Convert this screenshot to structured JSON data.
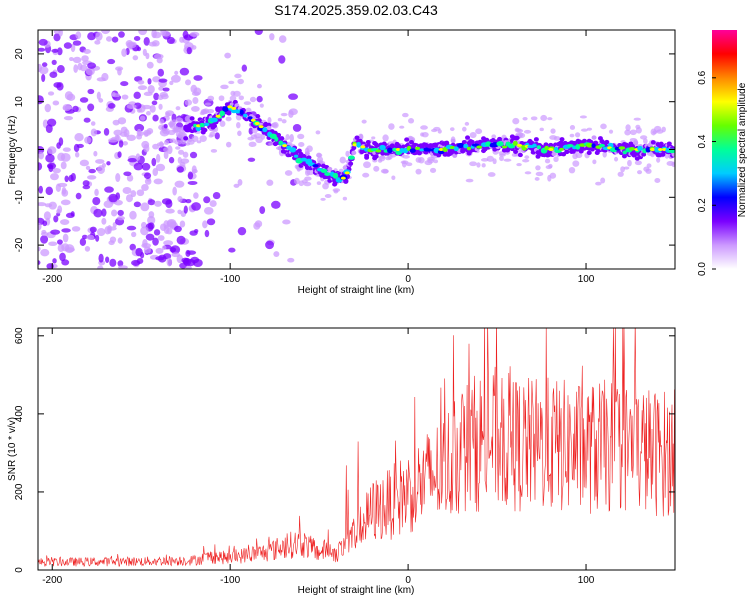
{
  "title": "S174.2025.359.02.03.C43",
  "colors": {
    "snr_line": "#ee2222",
    "colorbar": [
      "#ffffff",
      "#cc99ff",
      "#7a00ff",
      "#0000ff",
      "#00ccff",
      "#00ff99",
      "#66ff00",
      "#ffff00",
      "#ff8800",
      "#ff0000",
      "#ff0099"
    ]
  },
  "chart_data": [
    {
      "type": "heatmap",
      "name": "spectrogram",
      "xlabel": "Height of straight line (km)",
      "ylabel": "Frequency (Hz)",
      "xlim": [
        -208,
        150
      ],
      "ylim": [
        -25,
        25
      ],
      "xticks": [
        -200,
        -100,
        0,
        100
      ],
      "yticks": [
        -20,
        -10,
        0,
        10,
        20
      ],
      "colorbar": {
        "label": "Normalized spectral amplitude",
        "range": [
          0.0,
          0.75
        ],
        "ticks": [
          0.0,
          0.2,
          0.4,
          0.6
        ]
      },
      "ridge": {
        "description_points_x": [
          -125,
          -110,
          -100,
          -90,
          -80,
          -70,
          -60,
          -50,
          -40,
          -35,
          -30,
          -20,
          0,
          20,
          40,
          60,
          80,
          100,
          120,
          150
        ],
        "description_points_y": [
          4,
          6,
          9,
          7,
          4,
          1,
          -2,
          -4,
          -6,
          -6,
          1,
          0,
          0,
          0,
          1,
          1,
          0,
          1,
          0,
          0
        ]
      }
    },
    {
      "type": "line",
      "name": "snr",
      "xlabel": "Height of straight line (km)",
      "ylabel": "SNR (10 * v/v)",
      "xlim": [
        -208,
        150
      ],
      "ylim": [
        0,
        620
      ],
      "xticks": [
        -200,
        -100,
        0,
        100
      ],
      "yticks": [
        0,
        200,
        400,
        600
      ],
      "envelope_x": [
        -208,
        -150,
        -120,
        -110,
        -100,
        -90,
        -80,
        -70,
        -60,
        -50,
        -45,
        -40,
        -30,
        -20,
        -10,
        0,
        10,
        20,
        30,
        40,
        50,
        60,
        80,
        100,
        120,
        140,
        150
      ],
      "envelope_y": [
        20,
        22,
        25,
        35,
        30,
        40,
        45,
        60,
        70,
        45,
        55,
        40,
        90,
        150,
        170,
        200,
        230,
        260,
        310,
        330,
        340,
        320,
        320,
        310,
        320,
        300,
        300
      ]
    }
  ]
}
